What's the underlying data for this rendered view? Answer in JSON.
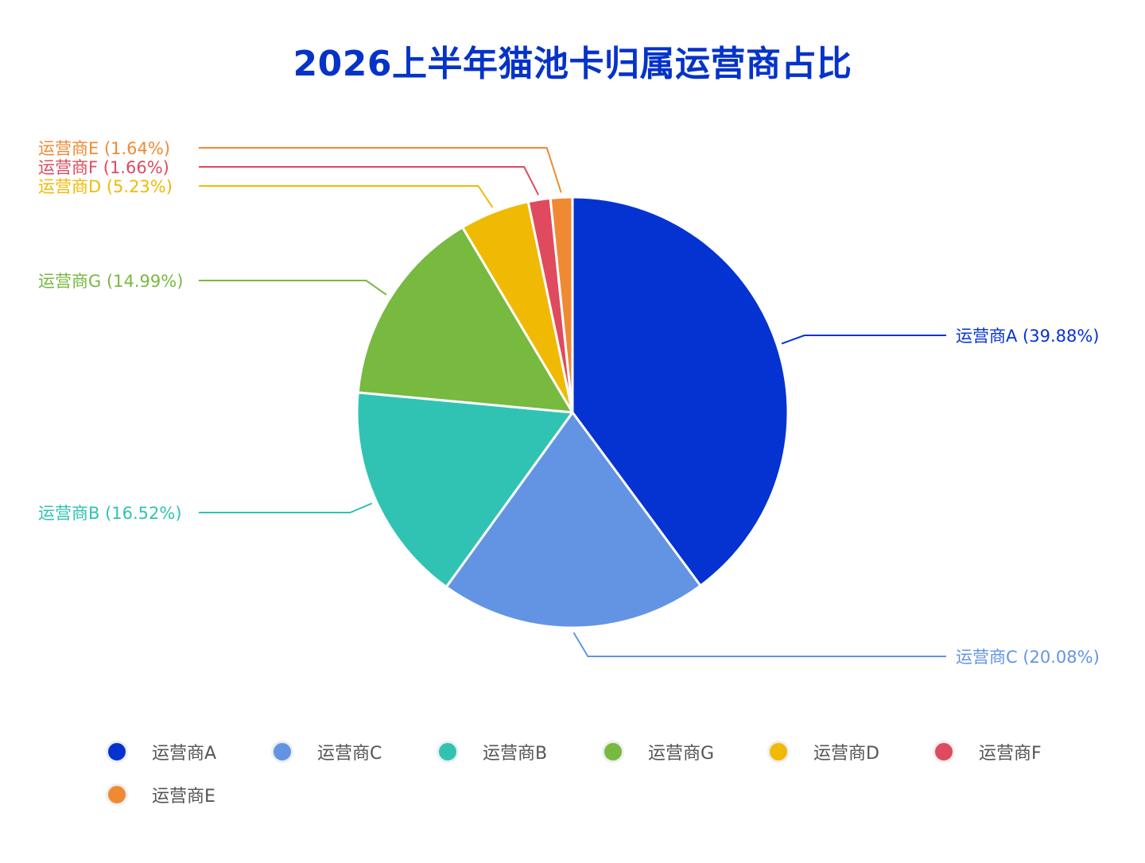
{
  "chart_data": {
    "type": "pie",
    "title": "2026上半年猫池卡归属运营商占比",
    "series": [
      {
        "name": "运营商A",
        "value": 39.88,
        "color": "#0533D1",
        "label": "运营商A (39.88%)"
      },
      {
        "name": "运营商C",
        "value": 20.08,
        "color": "#6394E4",
        "label": "运营商C (20.08%)"
      },
      {
        "name": "运营商B",
        "value": 16.52,
        "color": "#30C3B3",
        "label": "运营商B (16.52%)"
      },
      {
        "name": "运营商G",
        "value": 14.99,
        "color": "#78B940",
        "label": "运营商G (14.99%)"
      },
      {
        "name": "运营商D",
        "value": 5.23,
        "color": "#F0BA04",
        "label": "运营商D (5.23%)"
      },
      {
        "name": "运营商F",
        "value": 1.66,
        "color": "#E04A5E",
        "label": "运营商F (1.66%)"
      },
      {
        "name": "运营商E",
        "value": 1.64,
        "color": "#EF8A33",
        "label": "运营商E (1.64%)"
      }
    ],
    "legend_position": "bottom"
  }
}
